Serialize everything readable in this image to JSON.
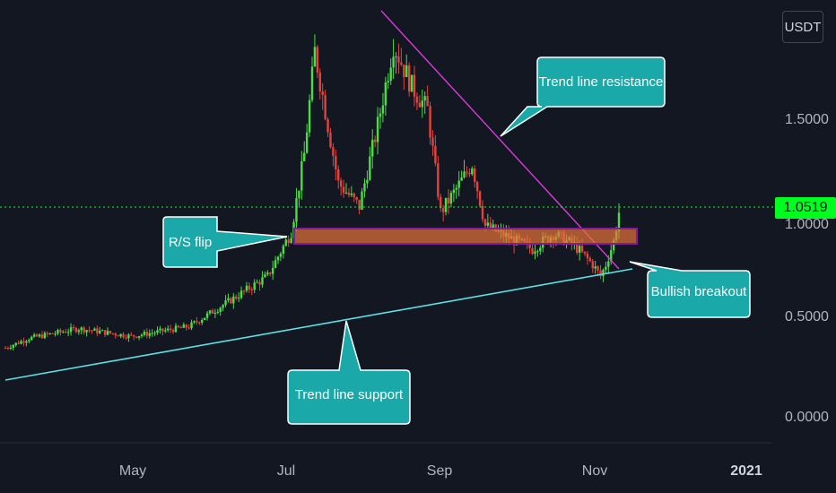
{
  "currency": "USDT",
  "last_price": "1.0519",
  "colors": {
    "background": "#131722",
    "up": "#4cdd45",
    "down": "#e4433c",
    "trend_support": "#5ce1e6",
    "trend_resistance": "#d83ad8",
    "zone_fill": "#e8743b",
    "zone_border": "#7b1fa2",
    "callout": "#1aa8a9",
    "last_price": "#00ff1e"
  },
  "callouts": {
    "rs_flip": "R/S flip",
    "resistance": "Trend line resistance",
    "breakout": "Bullish breakout",
    "support": "Trend line support"
  },
  "chart_data": {
    "type": "candlestick",
    "title": "",
    "xlabel": "",
    "ylabel": "",
    "x_ticks": [
      "May",
      "Jul",
      "Sep",
      "Nov",
      "2021"
    ],
    "y_ticks": [
      "0.0000",
      "0.5000",
      "1.0000",
      "1.5000"
    ],
    "ylim": [
      -0.14,
      2.1
    ],
    "last_price": 1.0519,
    "close_trend": [
      {
        "date": "2020-03-23",
        "close": 0.35
      },
      {
        "date": "2020-04-01",
        "close": 0.4
      },
      {
        "date": "2020-04-20",
        "close": 0.45
      },
      {
        "date": "2020-05-10",
        "close": 0.41
      },
      {
        "date": "2020-06-01",
        "close": 0.46
      },
      {
        "date": "2020-06-15",
        "close": 0.58
      },
      {
        "date": "2020-07-01",
        "close": 0.72
      },
      {
        "date": "2020-07-10",
        "close": 0.95
      },
      {
        "date": "2020-07-15",
        "close": 1.35
      },
      {
        "date": "2020-07-19",
        "close": 1.88
      },
      {
        "date": "2020-07-24",
        "close": 1.5
      },
      {
        "date": "2020-07-28",
        "close": 1.2
      },
      {
        "date": "2020-08-05",
        "close": 1.08
      },
      {
        "date": "2020-08-12",
        "close": 1.5
      },
      {
        "date": "2020-08-18",
        "close": 1.92
      },
      {
        "date": "2020-08-25",
        "close": 1.7
      },
      {
        "date": "2020-08-31",
        "close": 1.58
      },
      {
        "date": "2020-09-05",
        "close": 1.05
      },
      {
        "date": "2020-09-10",
        "close": 1.15
      },
      {
        "date": "2020-09-17",
        "close": 1.3
      },
      {
        "date": "2020-09-22",
        "close": 0.98
      },
      {
        "date": "2020-10-01",
        "close": 0.92
      },
      {
        "date": "2020-10-10",
        "close": 0.86
      },
      {
        "date": "2020-10-18",
        "close": 0.94
      },
      {
        "date": "2020-10-26",
        "close": 0.88
      },
      {
        "date": "2020-11-02",
        "close": 0.78
      },
      {
        "date": "2020-11-05",
        "close": 0.72
      },
      {
        "date": "2020-11-07",
        "close": 0.78
      },
      {
        "date": "2020-11-10",
        "close": 0.9
      },
      {
        "date": "2020-11-12",
        "close": 1.05
      }
    ],
    "annotations": [
      {
        "type": "trend_line",
        "label": "Trend line support",
        "points": [
          [
            "2020-03-23",
            0.09
          ],
          [
            "2020-11-18",
            0.78
          ]
        ]
      },
      {
        "type": "trend_line",
        "label": "Trend line resistance",
        "points": [
          [
            "2020-08-15",
            2.1
          ],
          [
            "2020-11-18",
            0.72
          ]
        ]
      },
      {
        "type": "horizontal_zone",
        "label": "R/S flip",
        "y_range": [
          0.87,
          0.97
        ],
        "from": "2020-07-06",
        "to": "2020-11-15"
      },
      {
        "type": "callout",
        "label": "Bullish breakout"
      }
    ]
  }
}
